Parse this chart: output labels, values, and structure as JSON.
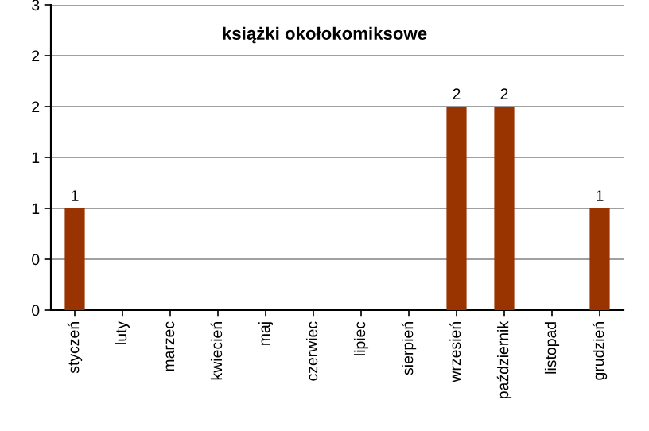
{
  "chart_data": {
    "type": "bar",
    "title": "książki okołokomiksowe",
    "categories": [
      "styczeń",
      "luty",
      "marzec",
      "kwiecień",
      "maj",
      "czerwiec",
      "lipiec",
      "sierpień",
      "wrzesień",
      "październik",
      "listopad",
      "grudzień"
    ],
    "values": [
      1,
      0,
      0,
      0,
      0,
      0,
      0,
      0,
      2,
      2,
      0,
      1
    ],
    "value_labels": [
      "1",
      null,
      null,
      null,
      null,
      null,
      null,
      null,
      "2",
      "2",
      null,
      "1"
    ],
    "color": "#993300",
    "ylim": [
      0,
      3
    ],
    "yticks": [
      0,
      {
        "value": 0.5,
        "label": "0"
      },
      1,
      {
        "value": 1.5,
        "label": "1"
      },
      2,
      {
        "value": 2.5,
        "label": "2"
      },
      3
    ],
    "grid": "y"
  }
}
